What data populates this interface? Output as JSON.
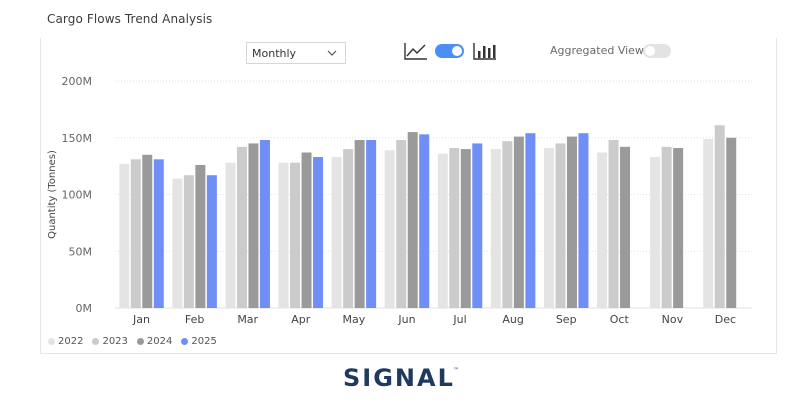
{
  "panel": {
    "title": "Cargo Flows Trend Analysis"
  },
  "controls": {
    "period_select": {
      "value": "Monthly",
      "icon": "chevron-down-icon"
    },
    "line_view_icon": "line-chart-icon",
    "view_toggle": {
      "on": true,
      "color": "#4a8ff5"
    },
    "bar_view_icon": "bar-chart-icon",
    "aggregated_view": {
      "label": "Aggregated View",
      "on": false
    }
  },
  "brand": {
    "logo_text": "SIGNAL",
    "trademark": "™",
    "color": "#1e3a5f"
  },
  "chart_data": {
    "type": "bar",
    "title": "",
    "xlabel": "",
    "ylabel": "Quantity (Tonnes)",
    "ylim": [
      0,
      200000000
    ],
    "yticks": [
      {
        "value": 0,
        "label": "0M"
      },
      {
        "value": 50000000,
        "label": "50M"
      },
      {
        "value": 100000000,
        "label": "100M"
      },
      {
        "value": 150000000,
        "label": "150M"
      },
      {
        "value": 200000000,
        "label": "200M"
      }
    ],
    "grid": true,
    "legend_position": "bottom-left",
    "categories": [
      "Jan",
      "Feb",
      "Mar",
      "Apr",
      "May",
      "Jun",
      "Jul",
      "Aug",
      "Sep",
      "Oct",
      "Nov",
      "Dec"
    ],
    "series": [
      {
        "name": "2022",
        "color": "#e4e4e4",
        "values": [
          127000000,
          114000000,
          128000000,
          128000000,
          133000000,
          139000000,
          136000000,
          140000000,
          141000000,
          137000000,
          133000000,
          149000000
        ]
      },
      {
        "name": "2023",
        "color": "#cbcbcb",
        "values": [
          131000000,
          117000000,
          142000000,
          128000000,
          140000000,
          148000000,
          141000000,
          147000000,
          145000000,
          148000000,
          142000000,
          161000000
        ]
      },
      {
        "name": "2024",
        "color": "#9a9a9a",
        "values": [
          135000000,
          126000000,
          145000000,
          137000000,
          148000000,
          155000000,
          140000000,
          151000000,
          151000000,
          142000000,
          141000000,
          150000000
        ]
      },
      {
        "name": "2025",
        "color": "#6f8ff7",
        "values": [
          131000000,
          117000000,
          148000000,
          133000000,
          148000000,
          153000000,
          145000000,
          154000000,
          154000000,
          null,
          null,
          null
        ]
      }
    ]
  }
}
